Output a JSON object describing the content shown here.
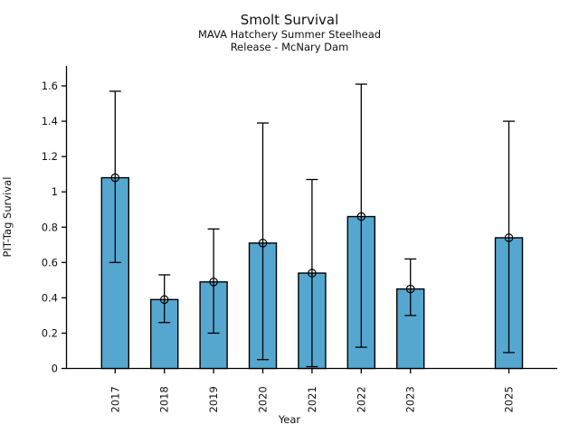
{
  "chart_data": {
    "type": "bar",
    "title": "Smolt Survival",
    "subtitle": [
      "MAVA Hatchery Summer Steelhead",
      "Release - McNary Dam"
    ],
    "xlabel": "Year",
    "ylabel": "PIT-Tag Survival",
    "categories": [
      "2017",
      "2018",
      "2019",
      "2020",
      "2021",
      "2022",
      "2023",
      "2025"
    ],
    "values": [
      1.08,
      0.39,
      0.49,
      0.71,
      0.54,
      0.86,
      0.45,
      0.74
    ],
    "error_low": [
      0.6,
      0.26,
      0.2,
      0.05,
      0.01,
      0.12,
      0.3,
      0.09
    ],
    "error_high": [
      1.57,
      0.53,
      0.79,
      1.39,
      1.07,
      1.61,
      0.62,
      1.4
    ],
    "missing_years": [
      "2024"
    ],
    "ylim": [
      0,
      1.71
    ],
    "yticks": [
      "0",
      "0.2",
      "0.4",
      "0.6",
      "0.8",
      "1",
      "1.2",
      "1.4",
      "1.6"
    ],
    "grid": false,
    "legend": null,
    "marker": "open-circle",
    "bar_color": "#56A7CF",
    "bar_edge_color": "#000000",
    "errorbar_color": "#000000",
    "axis_color": "#000000",
    "background_color": "#ffffff"
  }
}
